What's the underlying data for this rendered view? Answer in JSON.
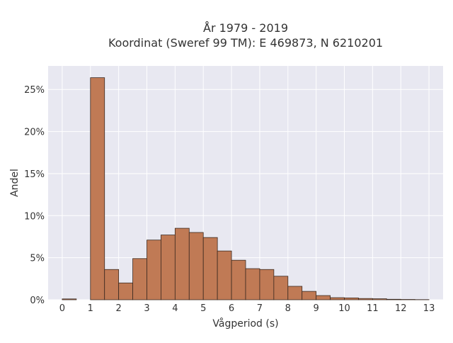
{
  "chart_data": {
    "type": "bar",
    "title_line1": "År 1979 - 2019",
    "title_line2": "Koordinat (Sweref 99 TM): E 469873, N 6210201",
    "xlabel": "Vågperiod (s)",
    "ylabel": "Andel",
    "xlim": [
      -0.5,
      13.5
    ],
    "ylim": [
      0,
      0.278
    ],
    "x_ticks": [
      0,
      1,
      2,
      3,
      4,
      5,
      6,
      7,
      8,
      9,
      10,
      11,
      12,
      13
    ],
    "x_tick_labels": [
      "0",
      "1",
      "2",
      "3",
      "4",
      "5",
      "6",
      "7",
      "8",
      "9",
      "10",
      "11",
      "12",
      "13"
    ],
    "y_ticks": [
      0,
      0.05,
      0.1,
      0.15,
      0.2,
      0.25
    ],
    "y_tick_labels": [
      "0%",
      "5%",
      "10%",
      "15%",
      "20%",
      "25%"
    ],
    "bin_width": 0.5,
    "bin_starts": [
      0,
      0.5,
      1,
      1.5,
      2,
      2.5,
      3,
      3.5,
      4,
      4.5,
      5,
      5.5,
      6,
      6.5,
      7,
      7.5,
      8,
      8.5,
      9,
      9.5,
      10,
      10.5,
      11,
      11.5,
      12,
      12.5
    ],
    "values": [
      0.001,
      0,
      0.264,
      0.036,
      0.02,
      0.049,
      0.071,
      0.077,
      0.085,
      0.08,
      0.074,
      0.058,
      0.047,
      0.037,
      0.036,
      0.028,
      0.016,
      0.01,
      0.005,
      0.0025,
      0.0022,
      0.0015,
      0.0012,
      0.0006,
      0.0004,
      0.0002
    ],
    "bar_color": "#c07a55",
    "bar_edge_color": "#3b2a20",
    "background_color": "#e8e8f1",
    "grid": true,
    "grid_color": "#ffffff"
  }
}
